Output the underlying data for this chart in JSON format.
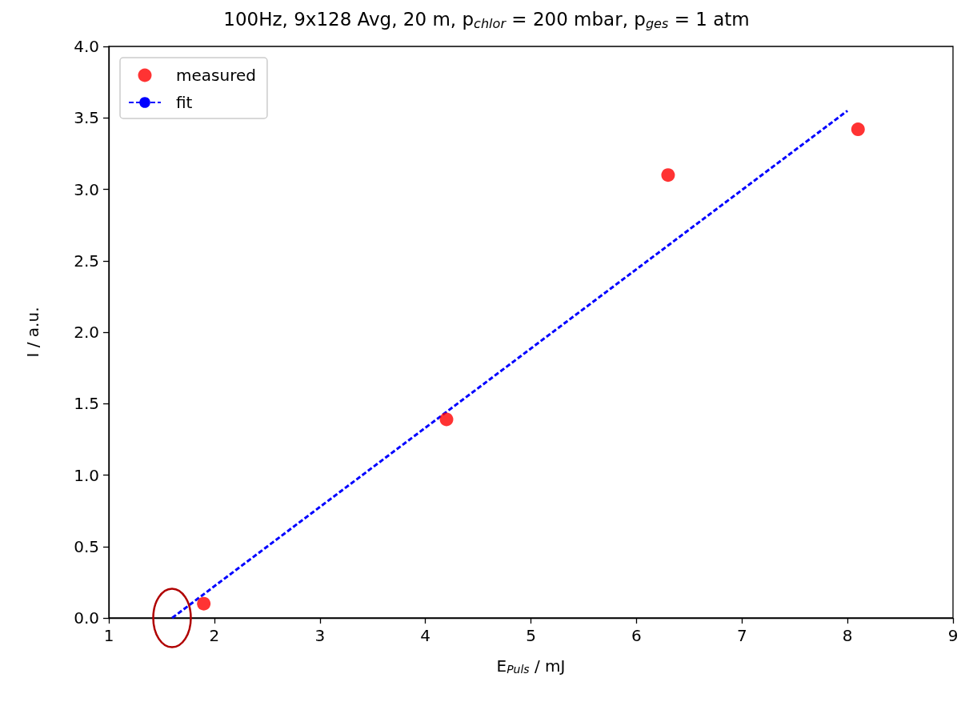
{
  "chart_data": {
    "type": "scatter",
    "title": "100Hz, 9x128 Avg, 20 m, p$_{chlor}$ = 200 mbar, p$_{ges}$ = 1 atm",
    "xlabel": "E$_{Puls}$ / mJ",
    "ylabel": "I / a.u.",
    "series": [
      {
        "name": "measured",
        "color": "#ff0000",
        "marker": "circle",
        "x": [
          1.9,
          4.2,
          6.3,
          8.1
        ],
        "values": [
          0.1,
          1.39,
          3.1,
          3.42
        ]
      },
      {
        "name": "fit",
        "type": "line",
        "color": "#0000ff",
        "marker": "none",
        "line_style": "dashed",
        "x": [
          1.6,
          8.0
        ],
        "values": [
          0,
          3.55
        ]
      }
    ],
    "xlim": [
      1,
      9
    ],
    "xticks": [
      1,
      2,
      3,
      4,
      5,
      6,
      7,
      8,
      9
    ],
    "ylim": [
      0,
      4
    ],
    "yticks": [
      {
        "value": 0,
        "label": "0.0"
      },
      {
        "value": 0.5,
        "label": "0.5"
      },
      {
        "value": 1,
        "label": "1.0"
      },
      {
        "value": 1.5,
        "label": "1.5"
      },
      {
        "value": 2,
        "label": "2.0"
      },
      {
        "value": 2.5,
        "label": "2.5"
      },
      {
        "value": 3,
        "label": "3.0"
      },
      {
        "value": 3.5,
        "label": "3.5"
      },
      {
        "value": 4,
        "label": "4.0"
      }
    ],
    "legend": "top left"
  }
}
